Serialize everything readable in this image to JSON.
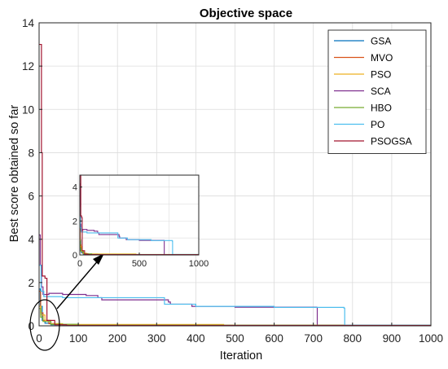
{
  "chart_data": {
    "type": "line",
    "title": "Objective space",
    "xlabel": "Iteration",
    "ylabel": "Best score obtained so far",
    "xlim": [
      0,
      1000
    ],
    "ylim": [
      0,
      14
    ],
    "xticks": [
      0,
      100,
      200,
      300,
      400,
      500,
      600,
      700,
      800,
      900,
      1000
    ],
    "yticks": [
      0,
      2,
      4,
      6,
      8,
      10,
      12,
      14
    ],
    "grid": true,
    "legend_position": "top-right",
    "series": [
      {
        "name": "GSA",
        "color": "#0072BD",
        "points": [
          [
            1,
            1.7
          ],
          [
            3,
            0.9
          ],
          [
            8,
            0.25
          ],
          [
            15,
            0.12
          ],
          [
            30,
            0.05
          ],
          [
            60,
            0.02
          ],
          [
            1000,
            0.02
          ]
        ]
      },
      {
        "name": "MVO",
        "color": "#D95319",
        "points": [
          [
            1,
            1.6
          ],
          [
            4,
            0.6
          ],
          [
            10,
            0.25
          ],
          [
            25,
            0.1
          ],
          [
            50,
            0.05
          ],
          [
            150,
            0.03
          ],
          [
            500,
            0.02
          ],
          [
            1000,
            0.02
          ]
        ]
      },
      {
        "name": "PSO",
        "color": "#EDB120",
        "points": [
          [
            1,
            0.9
          ],
          [
            5,
            0.5
          ],
          [
            15,
            0.25
          ],
          [
            30,
            0.1
          ],
          [
            60,
            0.06
          ],
          [
            470,
            0.06
          ],
          [
            471,
            0.02
          ],
          [
            1000,
            0.02
          ]
        ]
      },
      {
        "name": "SCA",
        "color": "#7E2F8E",
        "points": [
          [
            1,
            4.2
          ],
          [
            3,
            2.8
          ],
          [
            6,
            1.8
          ],
          [
            10,
            1.45
          ],
          [
            25,
            1.5
          ],
          [
            60,
            1.45
          ],
          [
            120,
            1.4
          ],
          [
            150,
            1.3
          ],
          [
            160,
            1.2
          ],
          [
            330,
            1.1
          ],
          [
            335,
            1.0
          ],
          [
            390,
            0.9
          ],
          [
            500,
            0.86
          ],
          [
            708,
            0.85
          ],
          [
            710,
            0.02
          ],
          [
            1000,
            0.02
          ]
        ]
      },
      {
        "name": "HBO",
        "color": "#77AC30",
        "points": [
          [
            1,
            0.8
          ],
          [
            4,
            0.4
          ],
          [
            10,
            0.2
          ],
          [
            30,
            0.07
          ],
          [
            100,
            0.03
          ],
          [
            1000,
            0.02
          ]
        ]
      },
      {
        "name": "PO",
        "color": "#4DBEEE",
        "points": [
          [
            1,
            2.8
          ],
          [
            5,
            1.6
          ],
          [
            12,
            1.35
          ],
          [
            60,
            1.3
          ],
          [
            310,
            1.3
          ],
          [
            320,
            1.0
          ],
          [
            400,
            0.9
          ],
          [
            600,
            0.85
          ],
          [
            778,
            0.82
          ],
          [
            780,
            0.03
          ],
          [
            1000,
            0.03
          ]
        ]
      },
      {
        "name": "PSOGSA",
        "color": "#A2142F",
        "points": [
          [
            1,
            13.0
          ],
          [
            4,
            13.0
          ],
          [
            6,
            8.0
          ],
          [
            8,
            2.3
          ],
          [
            15,
            2.2
          ],
          [
            20,
            0.25
          ],
          [
            40,
            0.05
          ],
          [
            70,
            0.02
          ],
          [
            1000,
            0.02
          ]
        ]
      }
    ],
    "inset": {
      "xlim": [
        0,
        1000
      ],
      "ylim": [
        0,
        4.7
      ],
      "xticks": [
        0,
        500,
        1000
      ],
      "yticks": [
        0,
        2,
        4
      ]
    }
  }
}
